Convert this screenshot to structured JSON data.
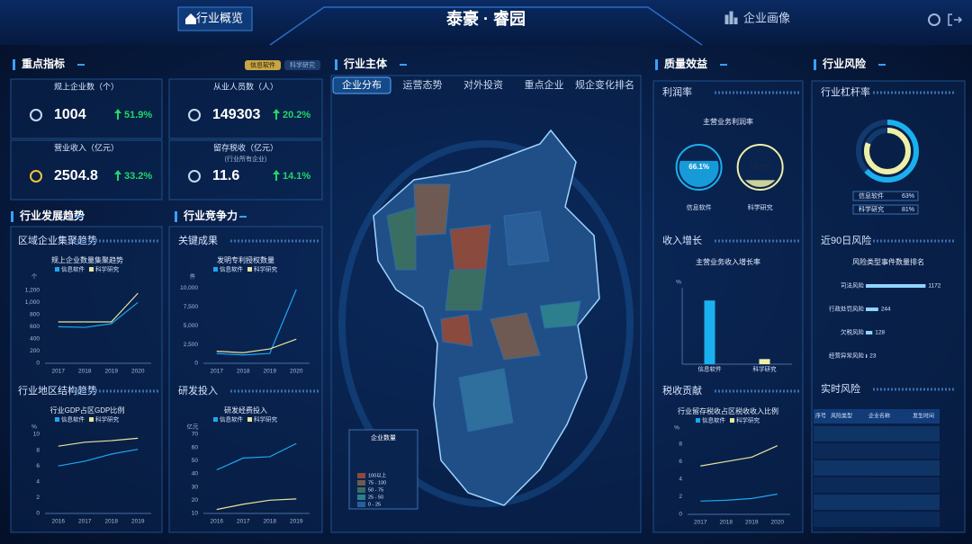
{
  "header": {
    "title": "泰豪 · 睿园",
    "nav": [
      "行业概览",
      "企业画像"
    ]
  },
  "key_indicators": {
    "title": "重点指标",
    "toggles": [
      "信息软件",
      "科学研究"
    ],
    "cards": [
      {
        "label": "规上企业数（个）",
        "value": "1004",
        "change": "51.9%"
      },
      {
        "label": "从业人员数（人）",
        "value": "149303",
        "change": "20.2%"
      },
      {
        "label": "营业收入（亿元）",
        "value": "2504.8",
        "change": "33.2%"
      },
      {
        "label": "留存税收（亿元）",
        "note": "(行业所有企业)",
        "value": "11.6",
        "change": "14.1%"
      }
    ]
  },
  "development": {
    "title": "行业发展趋势",
    "panels": [
      {
        "subtitle": "区域企业集聚趋势",
        "chart": {
          "type": "line",
          "title": "规上企业数量集聚趋势",
          "ylabel": "个",
          "categories": [
            "2017",
            "2018",
            "2019",
            "2020"
          ],
          "series": [
            {
              "name": "信息软件",
              "color": "#1ea7f0",
              "values": [
                600,
                590,
                650,
                1000
              ]
            },
            {
              "name": "科学研究",
              "color": "#e6e6a0",
              "values": [
                680,
                680,
                680,
                1150
              ]
            }
          ],
          "ylim": [
            0,
            1300
          ],
          "yticks": [
            0,
            200,
            400,
            600,
            800,
            {
              "value": 1000,
              "label": "1,000"
            },
            {
              "value": 1200,
              "label": "1,200"
            }
          ]
        }
      },
      {
        "subtitle": "行业地区结构趋势",
        "chart": {
          "type": "line",
          "title": "行业GDP占区GDP比例",
          "ylabel": "%",
          "categories": [
            "2016",
            "2017",
            "2018",
            "2019"
          ],
          "series": [
            {
              "name": "信息软件",
              "color": "#1ea7f0",
              "values": [
                6,
                6.6,
                7.5,
                8.1
              ]
            },
            {
              "name": "科学研究",
              "color": "#e6e6a0",
              "values": [
                8.5,
                9,
                9.2,
                9.5
              ]
            }
          ],
          "ylim": [
            0,
            10
          ],
          "yticks": [
            0,
            2,
            4,
            6,
            8,
            10
          ]
        }
      }
    ]
  },
  "competitiveness": {
    "title": "行业竞争力",
    "panels": [
      {
        "subtitle": "关键成果",
        "chart": {
          "type": "line",
          "title": "发明专利授权数量",
          "ylabel": "件",
          "categories": [
            "2017",
            "2018",
            "2019",
            "2020"
          ],
          "series": [
            {
              "name": "信息软件",
              "color": "#1ea7f0",
              "values": [
                1300,
                1100,
                1300,
                9800
              ]
            },
            {
              "name": "科学研究",
              "color": "#e6e6a0",
              "values": [
                1600,
                1400,
                1900,
                3200
              ]
            }
          ],
          "ylim": [
            0,
            10500
          ],
          "yticks": [
            0,
            {
              "value": 2500,
              "label": "2,500"
            },
            {
              "value": 5000,
              "label": "5,000"
            },
            {
              "value": 7500,
              "label": "7,500"
            },
            {
              "value": 10000,
              "label": "10,000"
            }
          ]
        }
      },
      {
        "subtitle": "研发投入",
        "chart": {
          "type": "line",
          "title": "研发经费投入",
          "ylabel": "亿元",
          "categories": [
            "2016",
            "2017",
            "2018",
            "2019"
          ],
          "series": [
            {
              "name": "信息软件",
              "color": "#1ea7f0",
              "values": [
                43,
                52,
                53,
                63
              ]
            },
            {
              "name": "科学研究",
              "color": "#e6e6a0",
              "values": [
                13,
                17,
                20,
                21
              ]
            }
          ],
          "ylim": [
            10,
            70
          ],
          "yticks": [
            10,
            20,
            30,
            40,
            50,
            60,
            70
          ]
        }
      }
    ]
  },
  "main_body": {
    "title": "行业主体",
    "tabs": [
      "企业分布",
      "运营态势",
      "对外投资",
      "重点企业",
      "规企变化排名"
    ],
    "active_tab": 0,
    "legend": {
      "title": "企业数量",
      "items": [
        {
          "label": "100以上",
          "color": "#8a4a3e"
        },
        {
          "label": "75 - 100",
          "color": "#6e5a52"
        },
        {
          "label": "50 - 75",
          "color": "#3b6e62"
        },
        {
          "label": "25 - 50",
          "color": "#2e7f8e"
        },
        {
          "label": "0 - 25",
          "color": "#2a5e98"
        }
      ]
    }
  },
  "quality": {
    "title": "质量效益",
    "panels": [
      {
        "subtitle": "利润率",
        "chart": {
          "type": "gauge",
          "title": "主营业务利润率",
          "categories": [
            "信息软件",
            "科学研究"
          ],
          "values": [
            66.1,
            17.5
          ],
          "value_labels": [
            "66.1%",
            "17.5%"
          ],
          "colors": [
            "#1ab0f0",
            "#eef0a8"
          ],
          "ylim": [
            0,
            100
          ]
        }
      },
      {
        "subtitle": "收入增长",
        "chart": {
          "type": "bar",
          "title": "主营业务收入增长率",
          "ylabel": "%",
          "categories": [
            "信息软件",
            "科学研究"
          ],
          "values": [
            25,
            2
          ],
          "colors": [
            "#1ab0f0",
            "#eef0a8"
          ],
          "ylim": [
            0,
            30
          ]
        }
      },
      {
        "subtitle": "税收贡献",
        "chart": {
          "type": "line",
          "title": "行业留存税收占区税收收入比例",
          "ylabel": "%",
          "categories": [
            "2017",
            "2018",
            "2019",
            "2020"
          ],
          "series": [
            {
              "name": "信息软件",
              "color": "#1ea7f0",
              "values": [
                1.5,
                1.6,
                1.8,
                2.3
              ]
            },
            {
              "name": "科学研究",
              "color": "#e6e6a0",
              "values": [
                5.5,
                6,
                6.5,
                7.8
              ]
            }
          ],
          "ylim": [
            0,
            9
          ],
          "yticks": [
            0,
            2,
            4,
            6,
            8
          ]
        }
      }
    ]
  },
  "risk": {
    "title": "行业风险",
    "panels": [
      {
        "subtitle": "行业杠杆率",
        "chart": {
          "type": "ring",
          "categories": [
            "信息软件",
            "科学研究"
          ],
          "values": [
            63,
            81
          ],
          "value_labels": [
            "63%",
            "81%"
          ],
          "colors": [
            "#1ab0f0",
            "#eef0a8"
          ],
          "ylim": [
            0,
            100
          ]
        }
      },
      {
        "subtitle": "近90日风险",
        "chart": {
          "type": "hbar",
          "title": "风险类型事件数量排名",
          "categories": [
            "司法风险",
            "行政处罚风险",
            "欠税风险",
            "经营异常风险"
          ],
          "values": [
            1172,
            244,
            128,
            23
          ],
          "color": "#8fd4ff",
          "xlim": [
            0,
            1200
          ]
        }
      },
      {
        "subtitle": "实时风险",
        "table": {
          "headers": [
            "序号",
            "风险类型",
            "企业名称",
            "发生时间"
          ]
        }
      }
    ]
  }
}
